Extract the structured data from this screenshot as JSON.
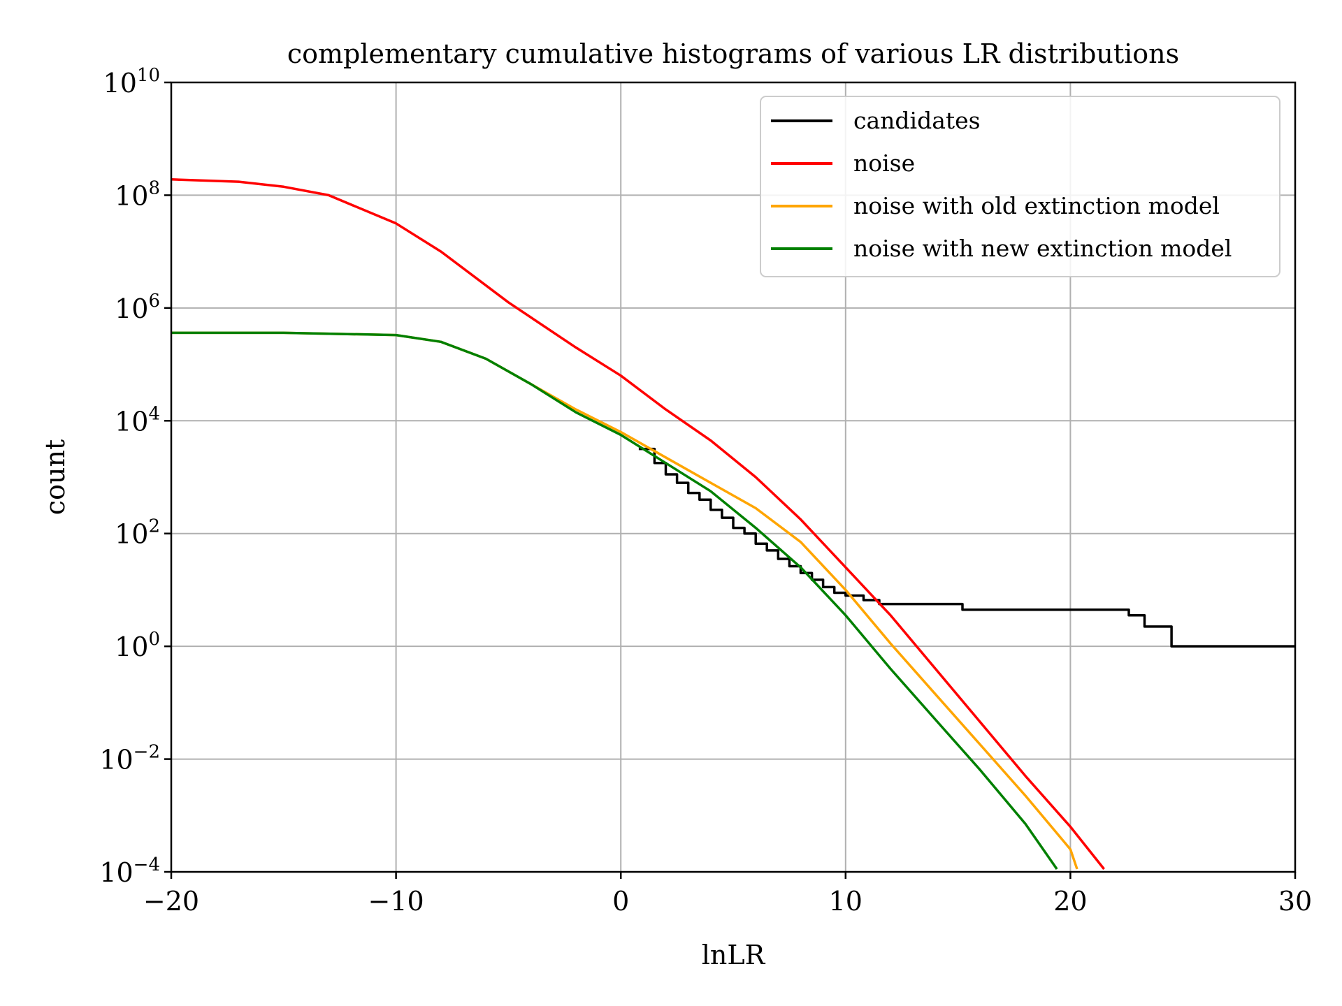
{
  "chart_data": {
    "type": "line",
    "title": "complementary cumulative histograms of various LR distributions",
    "xlabel": "lnLR",
    "ylabel": "count",
    "yscale": "log",
    "xlim": [
      -20,
      30
    ],
    "ylim_log10": [
      -4,
      10
    ],
    "grid": true,
    "legend_position": "top-right",
    "x_ticks": [
      {
        "value": -20,
        "label": "−20"
      },
      {
        "value": -10,
        "label": "−10"
      },
      {
        "value": 0,
        "label": "0"
      },
      {
        "value": 10,
        "label": "10"
      },
      {
        "value": 20,
        "label": "20"
      },
      {
        "value": 30,
        "label": "30"
      }
    ],
    "y_ticks": [
      {
        "value": -4,
        "base": "10",
        "exp": "−4"
      },
      {
        "value": -2,
        "base": "10",
        "exp": "−2"
      },
      {
        "value": 0,
        "base": "10",
        "exp": "0"
      },
      {
        "value": 2,
        "base": "10",
        "exp": "2"
      },
      {
        "value": 4,
        "base": "10",
        "exp": "4"
      },
      {
        "value": 6,
        "base": "10",
        "exp": "6"
      },
      {
        "value": 8,
        "base": "10",
        "exp": "8"
      },
      {
        "value": 10,
        "base": "10",
        "exp": "10"
      }
    ],
    "series": [
      {
        "name": "candidates",
        "color": "#000000",
        "step": true,
        "x": [
          0.8,
          1.5,
          2.0,
          2.5,
          3.0,
          3.5,
          4.0,
          4.5,
          5.0,
          5.5,
          6.0,
          6.5,
          7.0,
          7.5,
          8.0,
          8.5,
          9.0,
          9.5,
          10.0,
          10.8,
          11.5,
          15.2,
          22.6,
          23.3,
          24.5,
          30.0
        ],
        "log10_y": [
          3.5,
          3.25,
          3.05,
          2.9,
          2.72,
          2.6,
          2.42,
          2.28,
          2.1,
          2.0,
          1.82,
          1.7,
          1.55,
          1.42,
          1.3,
          1.18,
          1.05,
          0.95,
          0.9,
          0.82,
          0.75,
          0.65,
          0.55,
          0.35,
          0.0,
          0.0
        ]
      },
      {
        "name": "noise",
        "color": "#ff0000",
        "step": false,
        "x": [
          -20,
          -17,
          -15,
          -13,
          -10,
          -8,
          -5,
          -2,
          0,
          2,
          4,
          6,
          8,
          10,
          12,
          14,
          16,
          18,
          20,
          21.5
        ],
        "log10_y": [
          8.28,
          8.24,
          8.15,
          8.0,
          7.5,
          7.0,
          6.1,
          5.3,
          4.8,
          4.2,
          3.65,
          3.0,
          2.25,
          1.4,
          0.55,
          -0.4,
          -1.35,
          -2.3,
          -3.2,
          -3.95
        ]
      },
      {
        "name": "noise with old extinction model",
        "color": "#ffa500",
        "step": false,
        "x": [
          -20,
          -15,
          -10,
          -8,
          -6,
          -4,
          -2,
          0,
          2,
          4,
          6,
          8,
          10,
          12,
          14,
          16,
          18,
          20,
          20.3
        ],
        "log10_y": [
          5.56,
          5.56,
          5.52,
          5.4,
          5.1,
          4.65,
          4.2,
          3.8,
          3.35,
          2.9,
          2.45,
          1.85,
          1.0,
          0.05,
          -0.85,
          -1.75,
          -2.65,
          -3.6,
          -3.95
        ]
      },
      {
        "name": "noise with new extinction model",
        "color": "#008000",
        "step": false,
        "x": [
          -20,
          -15,
          -10,
          -8,
          -6,
          -4,
          -2,
          0,
          2,
          4,
          6,
          8,
          10,
          12,
          14,
          16,
          18,
          19.4
        ],
        "log10_y": [
          5.56,
          5.56,
          5.52,
          5.4,
          5.1,
          4.65,
          4.15,
          3.75,
          3.25,
          2.75,
          2.1,
          1.4,
          0.55,
          -0.4,
          -1.3,
          -2.2,
          -3.15,
          -3.95
        ]
      }
    ]
  }
}
